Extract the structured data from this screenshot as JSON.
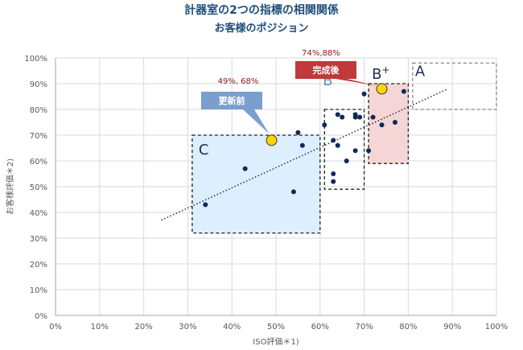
{
  "header": {
    "title": "計器室の2つの指標の相関関係",
    "subtitle": "お客様のポジション"
  },
  "chart_data": {
    "type": "scatter",
    "title": "計器室の2つの指標の相関関係",
    "subtitle": "お客様のポジション",
    "xlabel": "ISO評価＊1)",
    "ylabel": "お客様評価＊2)",
    "xlim": [
      0,
      100
    ],
    "ylim": [
      0,
      100
    ],
    "x_ticks": [
      "0%",
      "10%",
      "20%",
      "30%",
      "40%",
      "50%",
      "60%",
      "70%",
      "80%",
      "90%",
      "100%"
    ],
    "y_ticks": [
      "0%",
      "10%",
      "20%",
      "30%",
      "40%",
      "50%",
      "60%",
      "70%",
      "80%",
      "90%",
      "100%"
    ],
    "grid": true,
    "series": [
      {
        "name": "customers",
        "color": "#0e2a5a",
        "points": [
          [
            70,
            86
          ],
          [
            79,
            87
          ],
          [
            64,
            78
          ],
          [
            65,
            77
          ],
          [
            68,
            78
          ],
          [
            68,
            77
          ],
          [
            69,
            77
          ],
          [
            61,
            74
          ],
          [
            72,
            77
          ],
          [
            74,
            74
          ],
          [
            77,
            75
          ],
          [
            63,
            68
          ],
          [
            64,
            66
          ],
          [
            68,
            64
          ],
          [
            71,
            64
          ],
          [
            66,
            60
          ],
          [
            63,
            55
          ],
          [
            63,
            52
          ],
          [
            55,
            71
          ],
          [
            56,
            66
          ],
          [
            43,
            57
          ],
          [
            54,
            48
          ],
          [
            34,
            43
          ]
        ]
      }
    ],
    "highlights": [
      {
        "label": "更新前",
        "x": 49,
        "y": 68,
        "value_label": "49%, 68%",
        "color": "#ffd400",
        "callout_color": "#7a9fcf"
      },
      {
        "label": "完成後",
        "x": 74,
        "y": 88,
        "value_label": "74%,88%",
        "color": "#ffd400",
        "callout_color": "#c0393b"
      }
    ],
    "trendline": {
      "style": "dotted",
      "from": [
        24,
        37
      ],
      "to": [
        89,
        88
      ]
    },
    "regions": [
      {
        "label": "C",
        "x0": 31,
        "x1": 60,
        "y0": 32,
        "y1": 70,
        "fill": "#ddeeff"
      },
      {
        "label": "B−",
        "x0": 61,
        "x1": 70,
        "y0": 49,
        "y1": 80,
        "fill": "none"
      },
      {
        "label": "B+",
        "x0": 71,
        "x1": 80,
        "y0": 59,
        "y1": 90,
        "fill": "#f5d5d5"
      },
      {
        "label": "A",
        "x0": 81,
        "x1": 100,
        "y0": 80,
        "y1": 98,
        "fill": "none"
      }
    ]
  }
}
